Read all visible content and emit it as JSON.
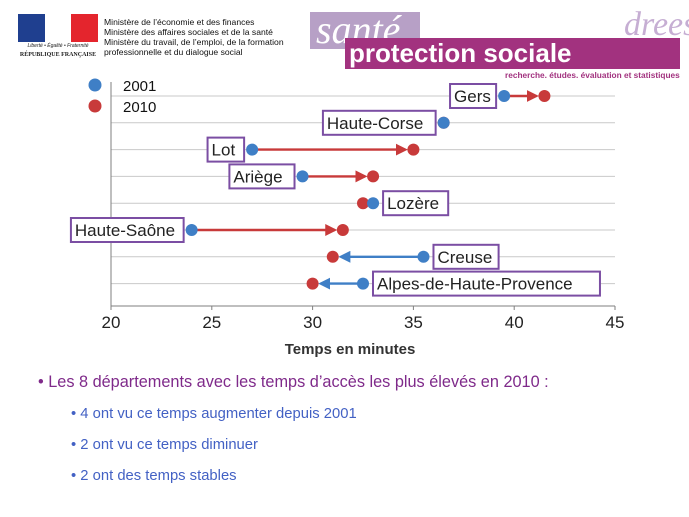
{
  "header": {
    "motto": "Liberté • Égalité • Fraternité",
    "republic": "RÉPUBLIQUE FRANÇAISE",
    "ministries": [
      "Ministère de l’économie et des finances",
      "Ministère des affaires sociales et de la santé",
      "Ministère du travail, de l’emploi, de la formation",
      "professionnelle et du dialogue social"
    ],
    "brand_sante": "santé",
    "brand_protection": "protection sociale",
    "brand_drees": "drees",
    "brand_tagline": "recherche, études, évaluation et statistiques"
  },
  "colors": {
    "series_2001": "#3f7fc6",
    "series_2010": "#c83a3a",
    "label_border": "#7b4ea3",
    "bullet_main": "#7f2a8a",
    "bullet_sub": "#4361c4",
    "brand_purple": "#a2327f",
    "brand_lilac": "#b7a0c6"
  },
  "chart_data": {
    "type": "dumbbell",
    "xlabel": "Temps en minutes",
    "ylabel": "",
    "xlim": [
      20,
      45
    ],
    "xticks": [
      20,
      25,
      30,
      35,
      40,
      45
    ],
    "grid": true,
    "legend": "top-left",
    "series": [
      {
        "name": "2001"
      },
      {
        "name": "2010"
      }
    ],
    "rows": [
      {
        "label": "Gers",
        "v2001": 39.5,
        "v2010": 41.5
      },
      {
        "label": "Haute-Corse",
        "v2001": 36.5,
        "v2010": 36.5
      },
      {
        "label": "Lot",
        "v2001": 27,
        "v2010": 35
      },
      {
        "label": "Ariège",
        "v2001": 29.5,
        "v2010": 33
      },
      {
        "label": "Lozère",
        "v2001": 33,
        "v2010": 32.5
      },
      {
        "label": "Haute-Saône",
        "v2001": 24,
        "v2010": 31.5
      },
      {
        "label": "Creuse",
        "v2001": 35.5,
        "v2010": 31
      },
      {
        "label": "Alpes-de-Haute-Provence",
        "v2001": 32.5,
        "v2010": 30
      }
    ]
  },
  "bullets": {
    "main": "• Les 8 départements avec les temps d’accès les plus élevés en 2010 :",
    "sub": [
      "• 4 ont vu ce temps augmenter depuis 2001",
      "• 2 ont vu ce temps diminuer",
      "• 2 ont des temps stables"
    ]
  }
}
